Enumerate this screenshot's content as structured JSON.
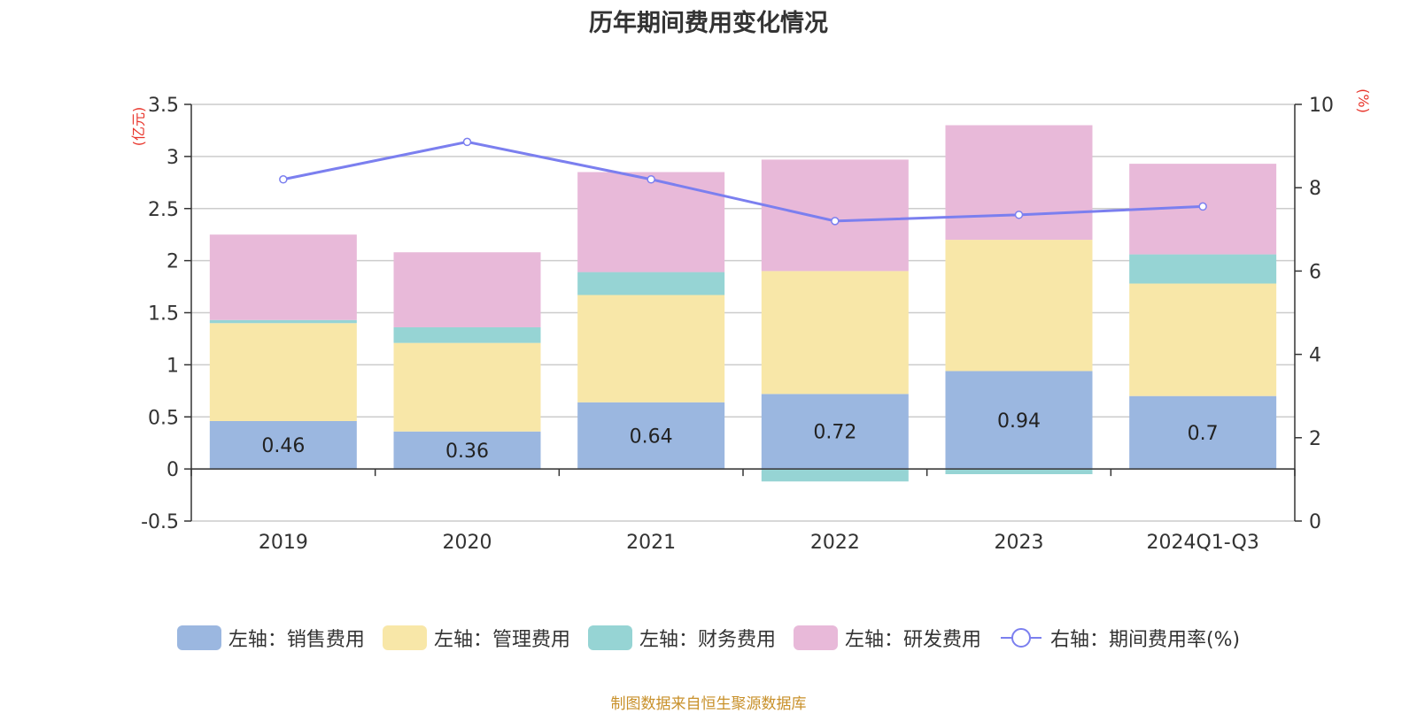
{
  "chart_data": {
    "type": "bar",
    "stacked": true,
    "title": "历年期间费用变化情况",
    "categories": [
      "2019",
      "2020",
      "2021",
      "2022",
      "2023",
      "2024Q1-Q3"
    ],
    "left_axis": {
      "unit": "(亿元)",
      "ylim": [
        -0.5,
        3.5
      ],
      "ticks": [
        "-0.5",
        "0",
        "0.5",
        "1",
        "1.5",
        "2",
        "2.5",
        "3",
        "3.5"
      ]
    },
    "right_axis": {
      "unit": "(%)",
      "ylim": [
        0,
        10
      ],
      "ticks": [
        "0",
        "2",
        "4",
        "6",
        "8",
        "10"
      ]
    },
    "series": [
      {
        "name": "左轴：销售费用",
        "axis": "left",
        "color": "#9bb7e0",
        "values": [
          0.46,
          0.36,
          0.64,
          0.72,
          0.94,
          0.7
        ],
        "labels": [
          "0.46",
          "0.36",
          "0.64",
          "0.72",
          "0.94",
          "0.7"
        ]
      },
      {
        "name": "左轴：管理费用",
        "axis": "left",
        "color": "#f8e7a8",
        "values": [
          0.94,
          0.85,
          1.03,
          1.18,
          1.26,
          1.08
        ]
      },
      {
        "name": "左轴：财务费用",
        "axis": "left",
        "color": "#96d4d4",
        "values": [
          0.03,
          0.15,
          0.22,
          -0.12,
          -0.05,
          0.28
        ]
      },
      {
        "name": "左轴：研发费用",
        "axis": "left",
        "color": "#e8b9d9",
        "values": [
          0.82,
          0.72,
          0.96,
          1.07,
          1.1,
          0.87
        ]
      }
    ],
    "line_series": {
      "name": "右轴：期间费用率(%)",
      "axis": "right",
      "color": "#7b7fef",
      "values": [
        8.2,
        9.1,
        8.2,
        7.2,
        7.35,
        7.55
      ]
    },
    "grid": true,
    "legend": "bottom"
  },
  "source_note": "制图数据来自恒生聚源数据库"
}
